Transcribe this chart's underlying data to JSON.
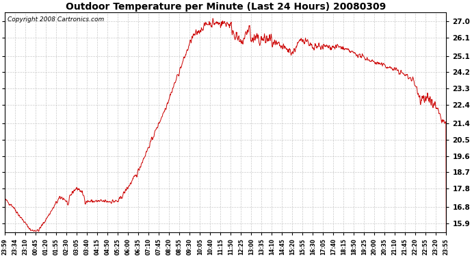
{
  "title": "Outdoor Temperature per Minute (Last 24 Hours) 20080309",
  "copyright": "Copyright 2008 Cartronics.com",
  "line_color": "#cc0000",
  "bg_color": "#ffffff",
  "plot_bg_color": "#ffffff",
  "grid_color": "#bbbbbb",
  "yticks": [
    15.9,
    16.8,
    17.8,
    18.7,
    19.6,
    20.5,
    21.4,
    22.4,
    23.3,
    24.2,
    25.1,
    26.1,
    27.0
  ],
  "ylim": [
    15.4,
    27.5
  ],
  "xtick_labels": [
    "23:59",
    "23:34",
    "23:10",
    "00:45",
    "01:20",
    "01:55",
    "02:30",
    "03:05",
    "03:40",
    "04:15",
    "04:50",
    "05:25",
    "06:00",
    "06:35",
    "07:10",
    "07:45",
    "08:20",
    "08:55",
    "09:30",
    "10:05",
    "10:40",
    "11:15",
    "11:50",
    "12:25",
    "13:00",
    "13:35",
    "14:10",
    "14:45",
    "15:20",
    "15:55",
    "16:30",
    "17:05",
    "17:40",
    "18:15",
    "18:50",
    "19:25",
    "20:00",
    "20:35",
    "21:10",
    "21:45",
    "22:20",
    "22:55",
    "23:20",
    "23:55"
  ],
  "figsize": [
    6.9,
    3.75
  ],
  "dpi": 100
}
